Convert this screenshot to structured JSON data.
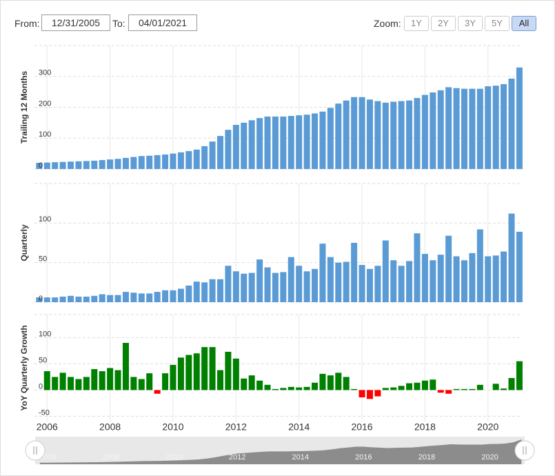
{
  "range_selector": {
    "from_label": "From:",
    "from": "12/31/2005",
    "to_label": "To:",
    "to": "04/01/2021",
    "zoom_label": "Zoom:",
    "zoom_buttons": [
      "1Y",
      "2Y",
      "3Y",
      "5Y",
      "All"
    ],
    "active_zoom": "All"
  },
  "chart_data": [
    {
      "type": "bar",
      "ylabel": "Trailing 12 Months",
      "color": "#5b9bd5",
      "grid": true,
      "xlim": [
        2005.6,
        2021.1
      ],
      "ylim": [
        0,
        400
      ],
      "yticks": [
        0,
        100,
        200,
        300
      ],
      "x": [
        2005.75,
        2006,
        2006.25,
        2006.5,
        2006.75,
        2007,
        2007.25,
        2007.5,
        2007.75,
        2008,
        2008.25,
        2008.5,
        2008.75,
        2009,
        2009.25,
        2009.5,
        2009.75,
        2010,
        2010.25,
        2010.5,
        2010.75,
        2011,
        2011.25,
        2011.5,
        2011.75,
        2012,
        2012.25,
        2012.5,
        2012.75,
        2013,
        2013.25,
        2013.5,
        2013.75,
        2014,
        2014.25,
        2014.5,
        2014.75,
        2015,
        2015.25,
        2015.5,
        2015.75,
        2016,
        2016.25,
        2016.5,
        2016.75,
        2017,
        2017.25,
        2017.5,
        2017.75,
        2018,
        2018.25,
        2018.5,
        2018.75,
        2019,
        2019.25,
        2019.5,
        2019.75,
        2020,
        2020.25,
        2020.5,
        2020.75,
        2021
      ],
      "values": [
        20,
        21,
        22,
        23,
        24,
        25,
        26,
        27,
        29,
        31,
        33,
        36,
        39,
        42,
        43,
        45,
        47,
        50,
        54,
        58,
        63,
        74,
        89,
        107,
        127,
        143,
        150,
        158,
        165,
        170,
        170,
        170,
        172,
        174,
        176,
        180,
        186,
        198,
        212,
        222,
        233,
        233,
        225,
        220,
        215,
        218,
        220,
        222,
        230,
        240,
        248,
        255,
        265,
        262,
        260,
        260,
        260,
        268,
        270,
        275,
        293,
        329
      ]
    },
    {
      "type": "bar",
      "ylabel": "Quarterly",
      "color": "#5b9bd5",
      "grid": true,
      "xlim": [
        2005.6,
        2021.1
      ],
      "ylim": [
        0,
        150
      ],
      "yticks": [
        0,
        50,
        100
      ],
      "x": [
        2005.75,
        2006,
        2006.25,
        2006.5,
        2006.75,
        2007,
        2007.25,
        2007.5,
        2007.75,
        2008,
        2008.25,
        2008.5,
        2008.75,
        2009,
        2009.25,
        2009.5,
        2009.75,
        2010,
        2010.25,
        2010.5,
        2010.75,
        2011,
        2011.25,
        2011.5,
        2011.75,
        2012,
        2012.25,
        2012.5,
        2012.75,
        2013,
        2013.25,
        2013.5,
        2013.75,
        2014,
        2014.25,
        2014.5,
        2014.75,
        2015,
        2015.25,
        2015.5,
        2015.75,
        2016,
        2016.25,
        2016.5,
        2016.75,
        2017,
        2017.25,
        2017.5,
        2017.75,
        2018,
        2018.25,
        2018.5,
        2018.75,
        2019,
        2019.25,
        2019.5,
        2019.75,
        2020,
        2020.25,
        2020.5,
        2020.75,
        2021
      ],
      "values": [
        6,
        6,
        6,
        7,
        8,
        7,
        7,
        8,
        10,
        9,
        9,
        13,
        12,
        11,
        11,
        13,
        15,
        15,
        17,
        21,
        26,
        25,
        29,
        29,
        46,
        39,
        36,
        37,
        54,
        44,
        37,
        38,
        57,
        46,
        39,
        42,
        74,
        57,
        50,
        51,
        75,
        47,
        42,
        46,
        78,
        53,
        46,
        52,
        87,
        61,
        53,
        60,
        84,
        58,
        53,
        62,
        92,
        58,
        59,
        64,
        112,
        89
      ]
    },
    {
      "type": "bar",
      "ylabel": "YoY Quarterly Growth",
      "color": "#008000",
      "negative_color": "#ff0000",
      "grid": true,
      "xlim": [
        2005.6,
        2021.1
      ],
      "ylim": [
        -60,
        144
      ],
      "yticks": [
        -50,
        0,
        50,
        100
      ],
      "xticks": [
        2006,
        2008,
        2010,
        2012,
        2014,
        2016,
        2018,
        2020
      ],
      "x": [
        2005.75,
        2006,
        2006.25,
        2006.5,
        2006.75,
        2007,
        2007.25,
        2007.5,
        2007.75,
        2008,
        2008.25,
        2008.5,
        2008.75,
        2009,
        2009.25,
        2009.5,
        2009.75,
        2010,
        2010.25,
        2010.5,
        2010.75,
        2011,
        2011.25,
        2011.5,
        2011.75,
        2012,
        2012.25,
        2012.5,
        2012.75,
        2013,
        2013.25,
        2013.5,
        2013.75,
        2014,
        2014.25,
        2014.5,
        2014.75,
        2015,
        2015.25,
        2015.5,
        2015.75,
        2016,
        2016.25,
        2016.5,
        2016.75,
        2017,
        2017.25,
        2017.5,
        2017.75,
        2018,
        2018.25,
        2018.5,
        2018.75,
        2019,
        2019.25,
        2019.5,
        2019.75,
        2020,
        2020.25,
        2020.5,
        2020.75,
        2021
      ],
      "values": [
        null,
        36,
        25,
        33,
        25,
        21,
        25,
        40,
        36,
        42,
        38,
        90,
        25,
        21,
        32,
        -7,
        32,
        48,
        62,
        67,
        70,
        82,
        82,
        38,
        73,
        60,
        22,
        28,
        18,
        10,
        2,
        4,
        6,
        5,
        6,
        14,
        31,
        28,
        33,
        25,
        2,
        -14,
        -17,
        -12,
        4,
        5,
        8,
        13,
        14,
        18,
        20,
        -5,
        -7,
        2,
        2,
        2,
        10,
        0,
        12,
        3,
        23,
        55
      ]
    }
  ]
}
